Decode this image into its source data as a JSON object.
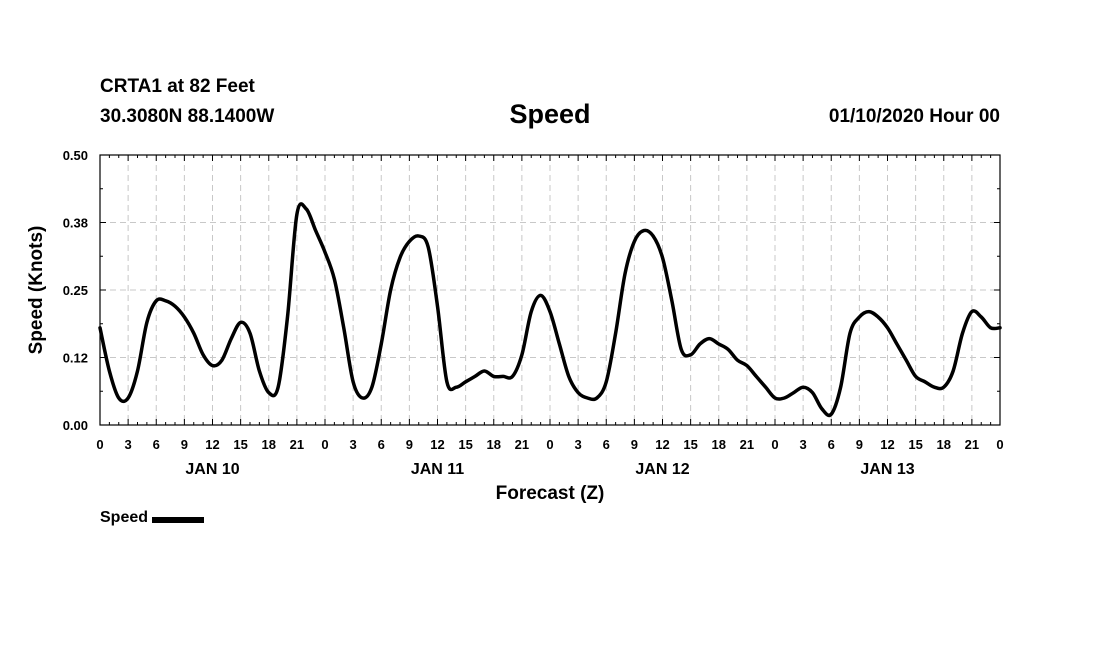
{
  "header": {
    "station": "CRTA1 at 82 Feet",
    "coords": "30.3080N 88.1400W",
    "title": "Speed",
    "run_time": "01/10/2020 Hour 00"
  },
  "legend": {
    "label": "Speed"
  },
  "colors": {
    "line": "#000000",
    "grid": "#c8c8c8",
    "axis": "#000000"
  },
  "chart_data": {
    "type": "line",
    "title": "Speed",
    "xlabel": "Forecast (Z)",
    "ylabel": "Speed (Knots)",
    "ylim": [
      0,
      0.5
    ],
    "xlim": [
      0,
      96
    ],
    "x_unit": "hours since 01/10/2020 00Z",
    "y_ticks": [
      0,
      0.125,
      0.25,
      0.375,
      0.5
    ],
    "y_tick_labels": [
      "0.00",
      "0.12",
      "0.25",
      "0.38",
      "0.50"
    ],
    "x_ticks": [
      0,
      3,
      6,
      9,
      12,
      15,
      18,
      21,
      24,
      27,
      30,
      33,
      36,
      39,
      42,
      45,
      48,
      51,
      54,
      57,
      60,
      63,
      66,
      69,
      72,
      75,
      78,
      81,
      84,
      87,
      90,
      93,
      96
    ],
    "x_tick_labels": [
      "0",
      "3",
      "6",
      "9",
      "12",
      "15",
      "18",
      "21",
      "0",
      "3",
      "6",
      "9",
      "12",
      "15",
      "18",
      "21",
      "0",
      "3",
      "6",
      "9",
      "12",
      "15",
      "18",
      "21",
      "0",
      "3",
      "6",
      "9",
      "12",
      "15",
      "18",
      "21",
      "0"
    ],
    "date_labels": [
      {
        "label": "JAN 10",
        "hour": 12
      },
      {
        "label": "JAN 11",
        "hour": 36
      },
      {
        "label": "JAN 12",
        "hour": 60
      },
      {
        "label": "JAN 13",
        "hour": 84
      }
    ],
    "grid": true,
    "series": [
      {
        "name": "Speed",
        "x": [
          0,
          1,
          2,
          3,
          4,
          5,
          6,
          7,
          8,
          9,
          10,
          11,
          12,
          13,
          14,
          15,
          16,
          17,
          18,
          19,
          20,
          21,
          22,
          23,
          24,
          25,
          26,
          27,
          28,
          29,
          30,
          31,
          32,
          33,
          34,
          35,
          36,
          37,
          38,
          39,
          40,
          41,
          42,
          43,
          44,
          45,
          46,
          47,
          48,
          49,
          50,
          51,
          52,
          53,
          54,
          55,
          56,
          57,
          58,
          59,
          60,
          61,
          62,
          63,
          64,
          65,
          66,
          67,
          68,
          69,
          70,
          71,
          72,
          73,
          74,
          75,
          76,
          77,
          78,
          79,
          80,
          81,
          82,
          83,
          84,
          85,
          86,
          87,
          88,
          89,
          90,
          91,
          92,
          93,
          94,
          95,
          96
        ],
        "values": [
          0.18,
          0.1,
          0.05,
          0.05,
          0.1,
          0.19,
          0.23,
          0.23,
          0.22,
          0.2,
          0.17,
          0.13,
          0.11,
          0.12,
          0.16,
          0.19,
          0.17,
          0.1,
          0.06,
          0.07,
          0.2,
          0.39,
          0.4,
          0.36,
          0.32,
          0.27,
          0.18,
          0.08,
          0.05,
          0.07,
          0.15,
          0.25,
          0.31,
          0.34,
          0.35,
          0.33,
          0.22,
          0.08,
          0.07,
          0.08,
          0.09,
          0.1,
          0.09,
          0.09,
          0.09,
          0.13,
          0.21,
          0.24,
          0.21,
          0.15,
          0.09,
          0.06,
          0.05,
          0.05,
          0.08,
          0.17,
          0.28,
          0.34,
          0.36,
          0.35,
          0.31,
          0.23,
          0.14,
          0.13,
          0.15,
          0.16,
          0.15,
          0.14,
          0.12,
          0.11,
          0.09,
          0.07,
          0.05,
          0.05,
          0.06,
          0.07,
          0.06,
          0.03,
          0.02,
          0.07,
          0.17,
          0.2,
          0.21,
          0.2,
          0.18,
          0.15,
          0.12,
          0.09,
          0.08,
          0.07,
          0.07,
          0.1,
          0.17,
          0.21,
          0.2,
          0.18,
          0.18
        ]
      }
    ]
  }
}
